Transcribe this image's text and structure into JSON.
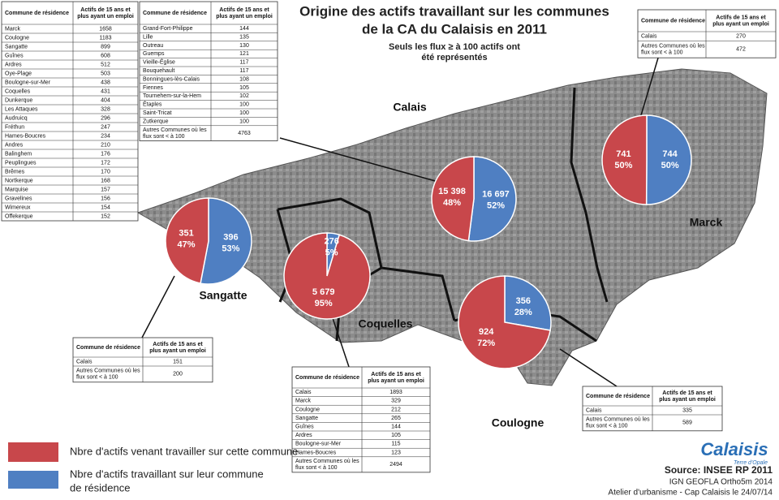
{
  "title": {
    "lines": [
      "Origine des actifs travaillant sur les communes",
      "de la CA du Calaisis en 2011"
    ]
  },
  "subtitle": {
    "lines": [
      "Seuls les flux ≥ à 100 actifs ont",
      "été représentés"
    ]
  },
  "communes": [
    {
      "name": "Calais",
      "values": [
        15398,
        16697
      ],
      "value_labels": [
        "15 398",
        "16 697"
      ],
      "percents": [
        48,
        52
      ],
      "percent_labels": [
        "48%",
        "52%"
      ]
    },
    {
      "name": "Marck",
      "values": [
        741,
        744
      ],
      "percents": [
        50,
        50
      ],
      "percent_labels": [
        "50%",
        "50%"
      ]
    },
    {
      "name": "Sangatte",
      "values": [
        351,
        396
      ],
      "percents": [
        47,
        53
      ],
      "percent_labels": [
        "47%",
        "53%"
      ]
    },
    {
      "name": "Coquelles",
      "values": [
        5679,
        276
      ],
      "value_labels": [
        "5 679",
        "276"
      ],
      "percents": [
        95,
        5
      ],
      "percent_labels": [
        "95%",
        "5%"
      ]
    },
    {
      "name": "Coulogne",
      "values": [
        924,
        356
      ],
      "percents": [
        72,
        28
      ],
      "percent_labels": [
        "72%",
        "28%"
      ]
    }
  ],
  "tables": [
    {
      "header": [
        "Commune de résidence",
        [
          "Actifs de 15 ans et",
          "plus ayant un emploi"
        ]
      ],
      "rows": [
        [
          "Marck",
          1658
        ],
        [
          "Coulogne",
          1183
        ],
        [
          "Sangatte",
          899
        ],
        [
          "Guînes",
          608
        ],
        [
          "Ardres",
          512
        ],
        [
          "Oye-Plage",
          503
        ],
        [
          "Boulogne-sur-Mer",
          438
        ],
        [
          "Coquelles",
          431
        ],
        [
          "Dunkerque",
          404
        ],
        [
          "Les Attaques",
          328
        ],
        [
          "Audruicq",
          296
        ],
        [
          "Fréthun",
          247
        ],
        [
          "Hames-Boucres",
          234
        ],
        [
          "Andres",
          210
        ],
        [
          "Balinghem",
          176
        ],
        [
          "Peuplingues",
          172
        ],
        [
          "Brêmes",
          170
        ],
        [
          "Nortkerque",
          168
        ],
        [
          "Marquise",
          157
        ],
        [
          "Gravelines",
          156
        ],
        [
          "Wimereux",
          154
        ],
        [
          "Offekerque",
          152
        ]
      ]
    },
    {
      "header": [
        "Commune de résidence",
        [
          "Actifs de 15 ans et",
          "plus ayant un emploi"
        ]
      ],
      "rows": [
        [
          "Grand-Fort-Philippe",
          144
        ],
        [
          "Lille",
          135
        ],
        [
          "Outreau",
          130
        ],
        [
          "Guemps",
          121
        ],
        [
          "Vieille-Église",
          117
        ],
        [
          "Bouquehault",
          117
        ],
        [
          "Bonningues-lès-Calais",
          108
        ],
        [
          "Fiennes",
          105
        ],
        [
          "Tournehem-sur-la-Hem",
          102
        ],
        [
          "Étaples",
          100
        ],
        [
          "Saint-Tricat",
          100
        ],
        [
          "Zutkerque",
          100
        ],
        [
          [
            "Autres Communes où les",
            "flux sont < à 100"
          ],
          4763
        ]
      ]
    },
    {
      "header": [
        "Commune de résidence",
        [
          "Actifs de 15 ans et",
          "plus ayant un emploi"
        ]
      ],
      "rows": [
        [
          "Calais",
          270
        ],
        [
          [
            "Autres Communes où les",
            "flux sont < à 100"
          ],
          472
        ]
      ]
    },
    {
      "header": [
        "Commune de résidence",
        [
          "Actifs de 15 ans et",
          "plus ayant un emploi"
        ]
      ],
      "rows": [
        [
          "Calais",
          151
        ],
        [
          [
            "Autres Communes où les",
            "flux sont < à 100"
          ],
          200
        ]
      ]
    },
    {
      "header": [
        "Commune de résidence",
        [
          "Actifs de 15 ans et",
          "plus ayant un emploi"
        ]
      ],
      "rows": [
        [
          "Calais",
          1893
        ],
        [
          "Marck",
          329
        ],
        [
          "Coulogne",
          212
        ],
        [
          "Sangatte",
          265
        ],
        [
          "Guînes",
          144
        ],
        [
          "Ardres",
          105
        ],
        [
          "Boulogne-sur-Mer",
          115
        ],
        [
          "Hames-Boucres",
          123
        ],
        [
          [
            "Autres Communes où les",
            "flux sont < à 100"
          ],
          2494
        ]
      ]
    },
    {
      "header": [
        "Commune de résidence",
        [
          "Actifs de 15 ans et",
          "plus ayant un emploi"
        ]
      ],
      "rows": [
        [
          "Calais",
          335
        ],
        [
          [
            "Autres Communes où les",
            "flux sont < à 100"
          ],
          589
        ]
      ]
    }
  ],
  "legend": {
    "items": [
      {
        "lines": [
          "Nbre d'actifs venant travailler sur cette commune"
        ],
        "color": "#c8474b"
      },
      {
        "lines": [
          "Nbre d'actifs travaillant sur leur commune",
          "de résidence"
        ],
        "color": "#4f7fc2"
      }
    ]
  },
  "logo": {
    "name": "Calaisis",
    "tagline": "Terre d'Opale"
  },
  "source": {
    "lines": [
      "Source: INSEE RP 2011",
      "IGN GEOFLA Ortho5m 2014",
      "Atelier d'urbanisme - Cap Calaisis le 24/07/14"
    ]
  }
}
